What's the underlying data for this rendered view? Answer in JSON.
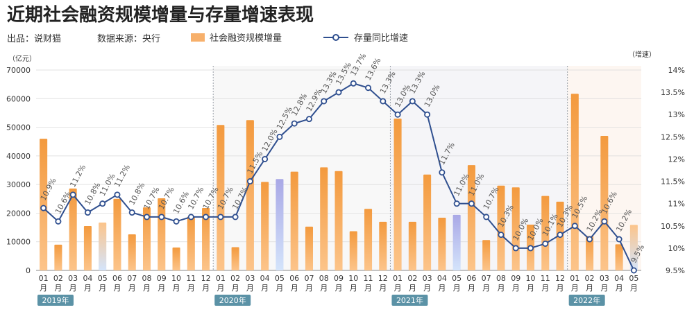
{
  "header": {
    "title": "近期社会融资规模增量与存量增速表现",
    "source_label": "出品：说财猫",
    "data_source_label": "数据来源：央行",
    "left_unit": "（亿元）",
    "right_unit": "（增速）"
  },
  "colors": {
    "bar_orange": "#F39A3E",
    "bar_light_orange": "#FCC48A",
    "bar_purple": "#A9A8E6",
    "bar_light_blue": "#D4E4FB",
    "line": "#2F4F8F",
    "year_badge": "#5B92A6",
    "bg_2020": "#F3F3F3",
    "bg_2021": "#EEEFF3",
    "bg_2022": "#FCF0E8"
  },
  "chart_data": {
    "type": "bar",
    "legend_placement": "top",
    "categories": [
      "2019-01",
      "2019-02",
      "2019-03",
      "2019-04",
      "2019-05",
      "2019-06",
      "2019-07",
      "2019-08",
      "2019-09",
      "2019-10",
      "2019-11",
      "2019-12",
      "2020-01",
      "2020-02",
      "2020-03",
      "2020-04",
      "2020-05",
      "2020-06",
      "2020-07",
      "2020-08",
      "2020-09",
      "2020-10",
      "2020-11",
      "2020-12",
      "2021-01",
      "2021-02",
      "2021-03",
      "2021-04",
      "2021-05",
      "2021-06",
      "2021-07",
      "2021-08",
      "2021-09",
      "2021-10",
      "2021-11",
      "2021-12",
      "2022-01",
      "2022-02",
      "2022-03",
      "2022-04",
      "2022-05"
    ],
    "month_labels": [
      "01\n月",
      "02\n月",
      "03\n月",
      "04\n月",
      "05\n月",
      "06\n月",
      "07\n月",
      "08\n月",
      "09\n月",
      "10\n月",
      "11\n月",
      "12\n月",
      "01\n月",
      "02\n月",
      "03\n月",
      "04\n月",
      "05\n月",
      "06\n月",
      "07\n月",
      "08\n月",
      "09\n月",
      "10\n月",
      "11\n月",
      "12\n月",
      "01\n月",
      "02\n月",
      "03\n月",
      "04\n月",
      "05\n月",
      "06\n月",
      "07\n月",
      "08\n月",
      "09\n月",
      "10\n月",
      "11\n月",
      "12\n月",
      "01\n月",
      "02\n月",
      "03\n月",
      "04\n月",
      "05\n月"
    ],
    "years": [
      {
        "label": "2019年",
        "start_index": 0
      },
      {
        "label": "2020年",
        "start_index": 12
      },
      {
        "label": "2021年",
        "start_index": 24
      },
      {
        "label": "2022年",
        "start_index": 36
      }
    ],
    "series": [
      {
        "name": "社会融资规模增量",
        "type": "bar",
        "axis": "left",
        "values": [
          46000,
          9000,
          28600,
          15500,
          16700,
          25000,
          12600,
          22000,
          25200,
          8000,
          18800,
          21800,
          50800,
          8100,
          52500,
          30900,
          31900,
          34500,
          15300,
          36000,
          34700,
          13700,
          21500,
          17000,
          53000,
          17000,
          33500,
          18400,
          19400,
          36800,
          10600,
          29600,
          29000,
          16000,
          26000,
          24000,
          61700,
          12000,
          47000,
          9100,
          15900
        ],
        "highlight": {
          "4": "light_blue",
          "16": "purple",
          "28": "purple",
          "40": "light_blue"
        }
      },
      {
        "name": "存量同比增速",
        "type": "line",
        "axis": "right",
        "values": [
          10.9,
          10.6,
          11.2,
          10.8,
          11.0,
          11.2,
          10.8,
          10.7,
          10.7,
          10.6,
          10.7,
          10.7,
          10.7,
          10.7,
          11.5,
          12.0,
          12.5,
          12.8,
          12.9,
          13.3,
          13.5,
          13.7,
          13.6,
          13.3,
          13.0,
          13.3,
          13.0,
          11.7,
          11.0,
          11.0,
          10.7,
          10.3,
          10.0,
          10.0,
          10.1,
          10.3,
          10.5,
          10.2,
          10.6,
          10.2,
          9.5
        ],
        "point_labels": [
          "10.9%",
          "10.6%",
          "11.2%",
          "10.8%",
          "11.0%",
          "11.2%",
          "10.8%",
          "10.7%",
          "10.7%",
          "10.6%",
          "10.7%",
          "10.7%",
          "10.7%",
          "10.7%",
          "11.5%",
          "12.0%",
          "12.5%",
          "12.8%",
          "12.9%",
          "13.3%",
          "13.5%",
          "13.7%",
          "13.6%",
          "13.3%",
          "13.0%",
          "13.3%",
          "13.0%",
          "11.7%",
          "11.0%",
          "11.0%",
          "10.7%",
          "10.3%",
          "10.0%",
          "10.0%",
          "10.1%",
          "10.3%",
          "10.5%",
          "10.2%",
          "10.6%",
          "10.2%",
          "9.5%"
        ]
      }
    ],
    "left_axis": {
      "ylim": [
        0,
        70000
      ],
      "ticks": [
        "0",
        "10000",
        "20000",
        "30000",
        "40000",
        "50000",
        "60000",
        "70000"
      ]
    },
    "right_axis": {
      "ylim": [
        9.5,
        14.0
      ],
      "ticks": [
        "9.5%",
        "10%",
        "10.5%",
        "11%",
        "11.5%",
        "12%",
        "12.5%",
        "13%",
        "13.5%",
        "14%"
      ]
    },
    "grid": true
  }
}
